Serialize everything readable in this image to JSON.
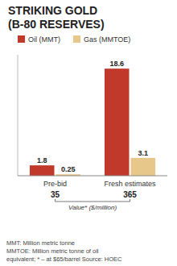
{
  "chart_data": {
    "type": "bar",
    "title": "STRIKING GOLD",
    "subtitle": "(B-80 RESERVES)",
    "categories": [
      "Pre-bid",
      "Fresh estimates"
    ],
    "series": [
      {
        "name": "Oil (MMT)",
        "color": "#c0392b",
        "values": [
          1.8,
          18.6
        ]
      },
      {
        "name": "Gas (MMTOE)",
        "color": "#e8c88a",
        "values": [
          0.25,
          3.1
        ]
      }
    ],
    "ylim": [
      0,
      21
    ],
    "data_labels": true,
    "legend": "upper left",
    "tick_labels": "x",
    "grid": false,
    "category_values": {
      "label": "Value* ($/million)",
      "values": [
        35,
        365
      ]
    },
    "annotations": [
      "MMT: Million metric tonne",
      "MMTOE: Million metric tonne of oil",
      "equivalent; * – at $65/barrel  Source: HOEC"
    ]
  }
}
